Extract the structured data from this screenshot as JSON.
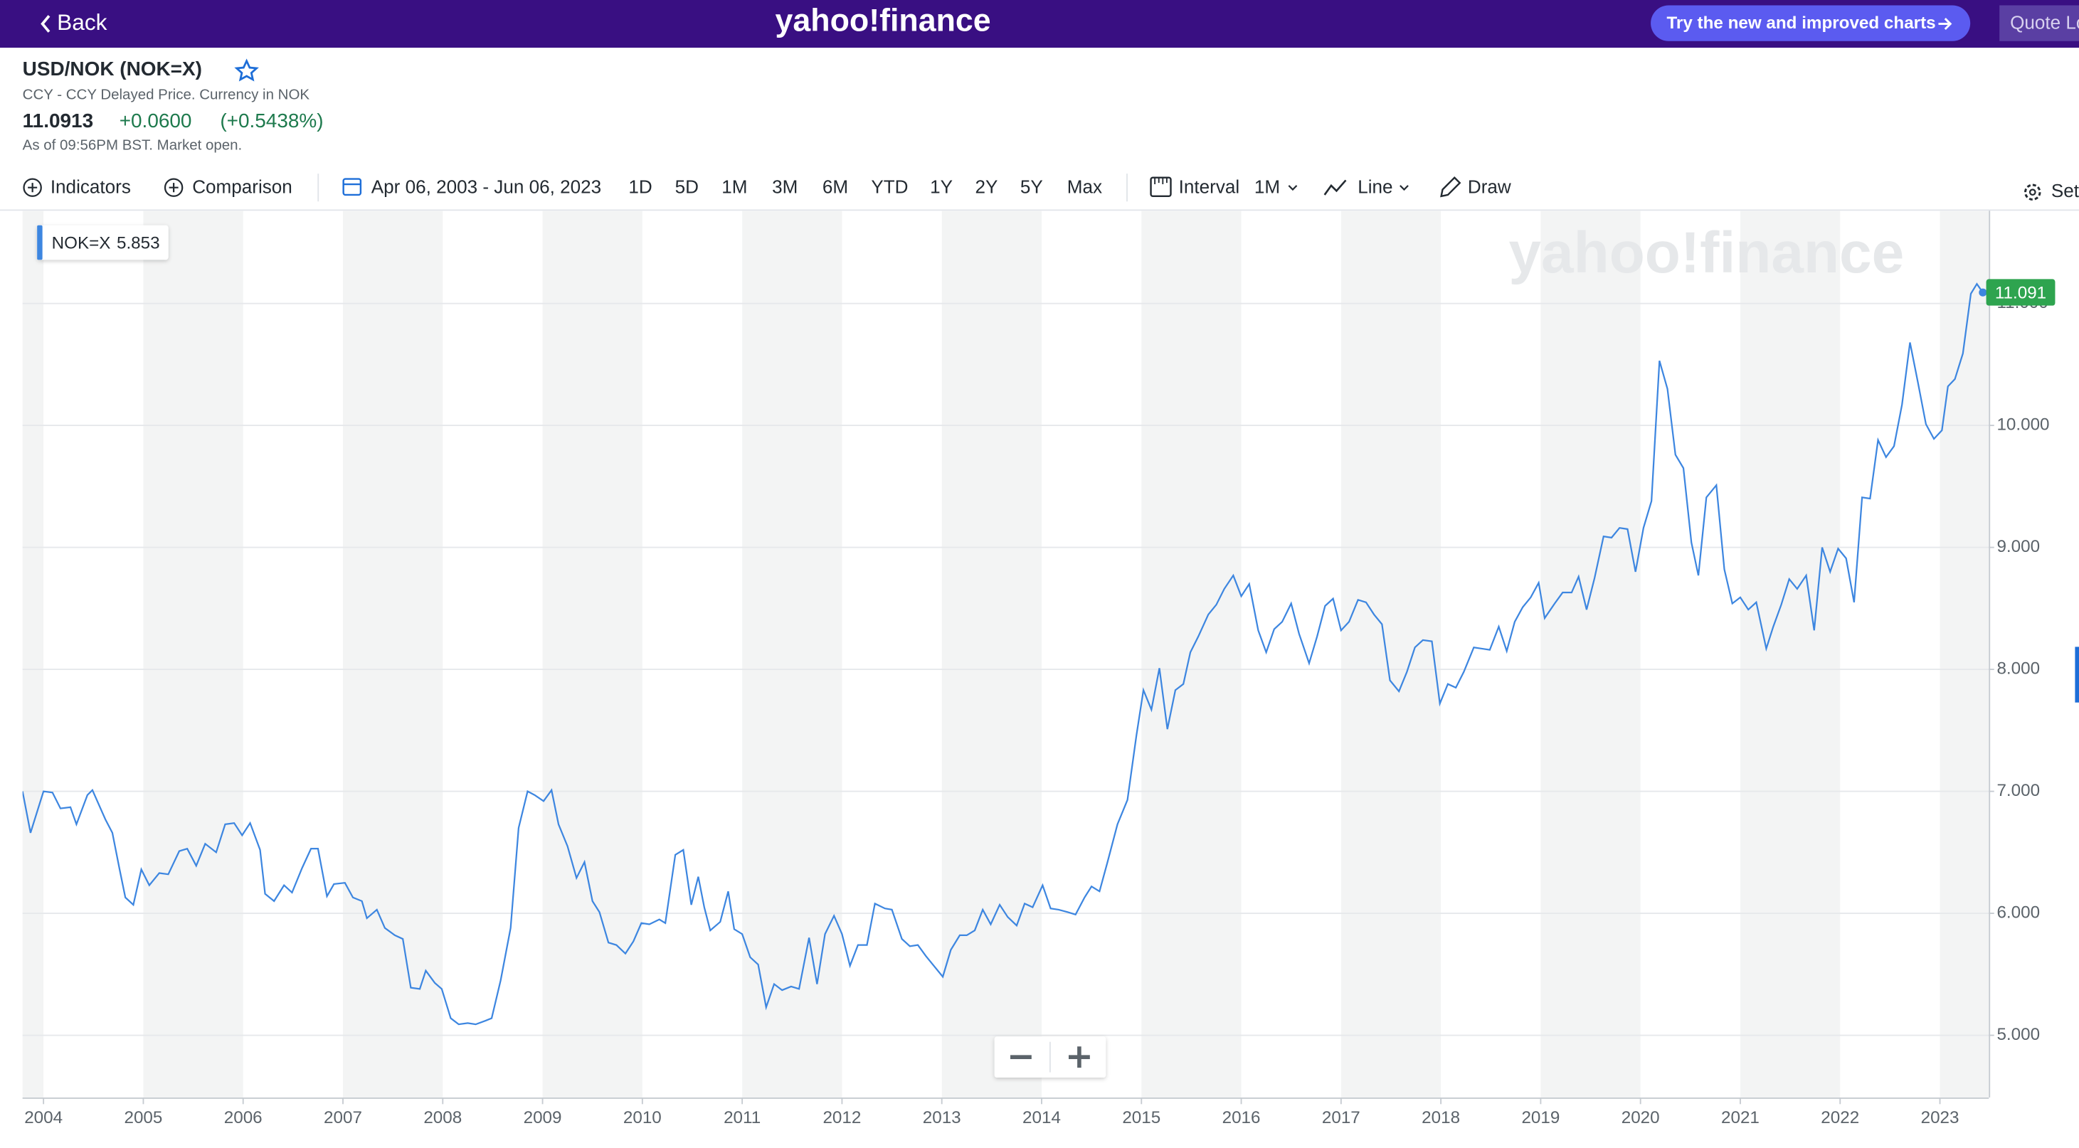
{
  "header": {
    "back": "Back",
    "logo": "yahoo!finance",
    "try_button": "Try the new and improved charts",
    "quote_lookup": "Quote Lo"
  },
  "quote": {
    "title": "USD/NOK (NOK=X)",
    "subtitle": "CCY - CCY Delayed Price. Currency in NOK",
    "price": "11.0913",
    "change": "+0.0600",
    "change_percent": "(+0.5438%)",
    "as_of": "As of 09:56PM BST. Market open."
  },
  "toolbar": {
    "indicators": "Indicators",
    "comparison": "Comparison",
    "date_range": "Apr 06, 2003 - Jun 06, 2023",
    "ranges": [
      "1D",
      "5D",
      "1M",
      "3M",
      "6M",
      "YTD",
      "1Y",
      "2Y",
      "5Y",
      "Max"
    ],
    "interval": "Interval",
    "interval_value": "1M",
    "chart_type": "Line",
    "draw": "Draw",
    "settings": "Set"
  },
  "chart_data": {
    "type": "line",
    "watermark": "yahoo!finance",
    "grid": true,
    "legend_value": 5.853,
    "last_price_label": 11.091,
    "xlim": [
      2003.79,
      2023.49
    ],
    "ylim": [
      4.49,
      11.76
    ],
    "xticks": [
      2004,
      2005,
      2006,
      2007,
      2008,
      2009,
      2010,
      2011,
      2012,
      2013,
      2014,
      2015,
      2016,
      2017,
      2018,
      2019,
      2020,
      2021,
      2022,
      2023
    ],
    "yticks": [
      {
        "value": 5,
        "label": "5.000"
      },
      {
        "value": 6,
        "label": "6.000"
      },
      {
        "value": 7,
        "label": "7.000"
      },
      {
        "value": 8,
        "label": "8.000"
      },
      {
        "value": 9,
        "label": "9.000"
      },
      {
        "value": 10,
        "label": "10.000"
      },
      {
        "value": 11,
        "label": "11.000"
      }
    ],
    "x": [
      2003.79,
      2003.87,
      2004,
      2004.09,
      2004.17,
      2004.27,
      2004.33,
      2004.44,
      2004.49,
      2004.62,
      2004.69,
      2004.76,
      2004.82,
      2004.9,
      2004.98,
      2005.06,
      2005.16,
      2005.25,
      2005.36,
      2005.44,
      2005.53,
      2005.62,
      2005.73,
      2005.82,
      2005.91,
      2005.99,
      2006.07,
      2006.17,
      2006.22,
      2006.31,
      2006.41,
      2006.49,
      2006.59,
      2006.68,
      2006.75,
      2006.84,
      2006.91,
      2007.02,
      2007.1,
      2007.19,
      2007.24,
      2007.34,
      2007.42,
      2007.52,
      2007.6,
      2007.68,
      2007.77,
      2007.83,
      2007.92,
      2007.99,
      2008.08,
      2008.16,
      2008.25,
      2008.33,
      2008.43,
      2008.49,
      2008.58,
      2008.68,
      2008.76,
      2008.85,
      2008.92,
      2009.01,
      2009.09,
      2009.16,
      2009.25,
      2009.34,
      2009.42,
      2009.5,
      2009.57,
      2009.66,
      2009.74,
      2009.83,
      2009.91,
      2009.99,
      2010.07,
      2010.17,
      2010.23,
      2010.33,
      2010.41,
      2010.49,
      2010.56,
      2010.62,
      2010.68,
      2010.78,
      2010.86,
      2010.92,
      2011,
      2011.08,
      2011.16,
      2011.24,
      2011.32,
      2011.4,
      2011.49,
      2011.57,
      2011.67,
      2011.75,
      2011.83,
      2011.92,
      2012,
      2012.08,
      2012.16,
      2012.25,
      2012.33,
      2012.43,
      2012.5,
      2012.6,
      2012.68,
      2012.76,
      2012.84,
      2012.92,
      2013.01,
      2013.09,
      2013.18,
      2013.25,
      2013.33,
      2013.41,
      2013.49,
      2013.58,
      2013.66,
      2013.75,
      2013.83,
      2013.91,
      2014.01,
      2014.09,
      2014.17,
      2014.26,
      2014.34,
      2014.43,
      2014.5,
      2014.58,
      2014.66,
      2014.76,
      2014.86,
      2014.95,
      2015.02,
      2015.1,
      2015.18,
      2015.26,
      2015.34,
      2015.42,
      2015.49,
      2015.57,
      2015.67,
      2015.75,
      2015.83,
      2015.92,
      2016,
      2016.08,
      2016.17,
      2016.25,
      2016.33,
      2016.41,
      2016.5,
      2016.58,
      2016.68,
      2016.76,
      2016.84,
      2016.92,
      2017,
      2017.08,
      2017.17,
      2017.25,
      2017.33,
      2017.41,
      2017.49,
      2017.58,
      2017.66,
      2017.74,
      2017.82,
      2017.91,
      2017.99,
      2018.07,
      2018.15,
      2018.23,
      2018.33,
      2018.41,
      2018.49,
      2018.58,
      2018.66,
      2018.74,
      2018.82,
      2018.9,
      2018.98,
      2019.04,
      2019.14,
      2019.22,
      2019.31,
      2019.38,
      2019.46,
      2019.54,
      2019.63,
      2019.71,
      2019.79,
      2019.87,
      2019.95,
      2020.03,
      2020.11,
      2020.19,
      2020.27,
      2020.35,
      2020.43,
      2020.51,
      2020.58,
      2020.66,
      2020.76,
      2020.84,
      2020.92,
      2021,
      2021.08,
      2021.16,
      2021.26,
      2021.33,
      2021.41,
      2021.49,
      2021.57,
      2021.66,
      2021.74,
      2021.82,
      2021.9,
      2021.98,
      2022.06,
      2022.14,
      2022.22,
      2022.3,
      2022.38,
      2022.46,
      2022.54,
      2022.62,
      2022.7,
      2022.78,
      2022.86,
      2022.94,
      2023.02,
      2023.08,
      2023.15,
      2023.23,
      2023.31,
      2023.37,
      2023.43
    ],
    "series": [
      {
        "name": "NOK=X",
        "color": "#3d86e0",
        "values": [
          7.0,
          6.66,
          7.0,
          6.99,
          6.86,
          6.87,
          6.73,
          6.97,
          7.01,
          6.77,
          6.66,
          6.37,
          6.13,
          6.07,
          6.36,
          6.23,
          6.33,
          6.32,
          6.51,
          6.53,
          6.39,
          6.57,
          6.5,
          6.73,
          6.74,
          6.64,
          6.74,
          6.52,
          6.16,
          6.1,
          6.23,
          6.17,
          6.37,
          6.53,
          6.53,
          6.14,
          6.24,
          6.25,
          6.13,
          6.1,
          5.96,
          6.03,
          5.88,
          5.82,
          5.79,
          5.39,
          5.38,
          5.53,
          5.43,
          5.38,
          5.14,
          5.09,
          5.1,
          5.09,
          5.12,
          5.14,
          5.45,
          5.88,
          6.7,
          7,
          6.97,
          6.92,
          7.01,
          6.73,
          6.55,
          6.29,
          6.42,
          6.1,
          6.01,
          5.76,
          5.74,
          5.67,
          5.77,
          5.92,
          5.91,
          5.95,
          5.92,
          6.48,
          6.52,
          6.07,
          6.3,
          6.05,
          5.86,
          5.93,
          6.18,
          5.87,
          5.83,
          5.64,
          5.58,
          5.23,
          5.42,
          5.37,
          5.4,
          5.38,
          5.8,
          5.42,
          5.83,
          5.98,
          5.83,
          5.57,
          5.74,
          5.74,
          6.08,
          6.04,
          6.03,
          5.79,
          5.73,
          5.74,
          5.65,
          5.57,
          5.48,
          5.7,
          5.82,
          5.82,
          5.86,
          6.03,
          5.91,
          6.07,
          5.97,
          5.9,
          6.08,
          6.05,
          6.23,
          6.04,
          6.03,
          6.01,
          5.99,
          6.13,
          6.22,
          6.18,
          6.42,
          6.73,
          6.93,
          7.46,
          7.83,
          7.67,
          8.01,
          7.51,
          7.83,
          7.88,
          8.14,
          8.27,
          8.45,
          8.53,
          8.66,
          8.77,
          8.6,
          8.7,
          8.32,
          8.14,
          8.33,
          8.39,
          8.54,
          8.29,
          8.05,
          8.27,
          8.52,
          8.58,
          8.32,
          8.39,
          8.57,
          8.55,
          8.45,
          8.37,
          7.91,
          7.82,
          7.98,
          8.18,
          8.24,
          8.23,
          7.72,
          7.88,
          7.85,
          7.98,
          8.18,
          8.17,
          8.16,
          8.35,
          8.15,
          8.39,
          8.51,
          8.59,
          8.71,
          8.42,
          8.54,
          8.63,
          8.63,
          8.76,
          8.49,
          8.75,
          9.09,
          9.08,
          9.16,
          9.15,
          8.8,
          9.16,
          9.38,
          10.53,
          10.3,
          9.76,
          9.65,
          9.04,
          8.77,
          9.41,
          9.51,
          8.82,
          8.54,
          8.59,
          8.49,
          8.55,
          8.17,
          8.35,
          8.53,
          8.74,
          8.66,
          8.77,
          8.32,
          9,
          8.8,
          8.99,
          8.91,
          8.55,
          9.41,
          9.4,
          9.88,
          9.74,
          9.83,
          10.17,
          10.68,
          10.35,
          10.01,
          9.89,
          9.96,
          10.32,
          10.38,
          10.59,
          11.08,
          11.16,
          11.09
        ]
      }
    ]
  }
}
